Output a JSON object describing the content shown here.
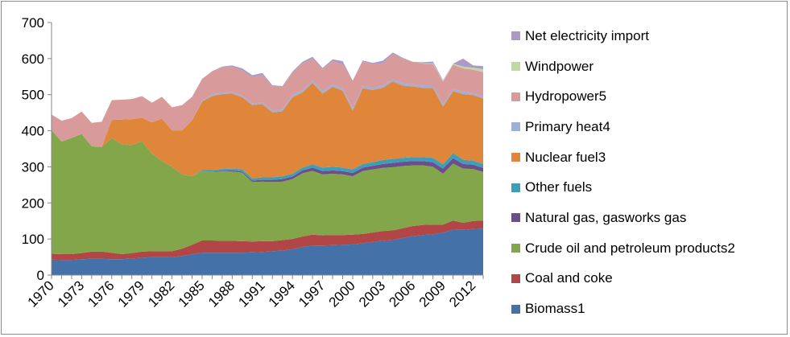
{
  "chart_data": {
    "type": "area",
    "stacked": true,
    "x": [
      1970,
      1971,
      1972,
      1973,
      1974,
      1975,
      1976,
      1977,
      1978,
      1979,
      1980,
      1981,
      1982,
      1983,
      1984,
      1985,
      1986,
      1987,
      1988,
      1989,
      1990,
      1991,
      1992,
      1993,
      1994,
      1995,
      1996,
      1997,
      1998,
      1999,
      2000,
      2001,
      2002,
      2003,
      2004,
      2005,
      2006,
      2007,
      2008,
      2009,
      2010,
      2011,
      2012,
      2013
    ],
    "x_tick_labels": [
      "1970",
      "1973",
      "1976",
      "1979",
      "1982",
      "1985",
      "1988",
      "1991",
      "1994",
      "1997",
      "2000",
      "2003",
      "2006",
      "2009",
      "2012"
    ],
    "y_tick_labels": [
      "0",
      "100",
      "200",
      "300",
      "400",
      "500",
      "600",
      "700"
    ],
    "ylim": [
      0,
      700
    ],
    "y_ticks": [
      0,
      100,
      200,
      300,
      400,
      500,
      600,
      700
    ],
    "grid": false,
    "legend_position": "right",
    "series": [
      {
        "name": "Biomass1",
        "color": "#4472A8",
        "values": [
          43,
          42,
          42,
          44,
          45,
          45,
          44,
          44,
          46,
          48,
          50,
          50,
          50,
          53,
          58,
          62,
          62,
          62,
          62,
          62,
          63,
          64,
          66,
          68,
          72,
          78,
          82,
          82,
          83,
          84,
          85,
          88,
          92,
          95,
          97,
          103,
          108,
          111,
          113,
          118,
          126,
          125,
          128,
          129
        ]
      },
      {
        "name": "Coal and coke",
        "color": "#B24545",
        "values": [
          16,
          16,
          16,
          17,
          20,
          20,
          18,
          14,
          15,
          17,
          16,
          16,
          16,
          20,
          26,
          34,
          34,
          33,
          33,
          32,
          30,
          30,
          28,
          29,
          28,
          29,
          30,
          28,
          28,
          27,
          27,
          26,
          26,
          27,
          27,
          27,
          28,
          28,
          27,
          22,
          25,
          20,
          22,
          22
        ]
      },
      {
        "name": "Crude oil and petroleum products2",
        "color": "#84A64A",
        "values": [
          343,
          312,
          322,
          330,
          292,
          290,
          318,
          305,
          299,
          306,
          271,
          250,
          235,
          206,
          190,
          192,
          190,
          192,
          192,
          190,
          165,
          165,
          164,
          162,
          166,
          175,
          177,
          169,
          170,
          168,
          162,
          174,
          175,
          175,
          175,
          172,
          168,
          165,
          160,
          141,
          158,
          150,
          144,
          135
        ]
      },
      {
        "name": "Natural gas, gasworks gas",
        "color": "#6A4F8C",
        "values": [
          0,
          0,
          0,
          0,
          0,
          0,
          0,
          0,
          0,
          0,
          0,
          0,
          0,
          0,
          0,
          0,
          1,
          2,
          3,
          3,
          4,
          5,
          6,
          7,
          7,
          8,
          9,
          9,
          9,
          9,
          9,
          10,
          10,
          11,
          12,
          12,
          12,
          12,
          13,
          14,
          15,
          13,
          12,
          11
        ]
      },
      {
        "name": "Other fuels",
        "color": "#3F9DB8",
        "values": [
          0,
          0,
          0,
          0,
          0,
          0,
          0,
          0,
          0,
          0,
          0,
          0,
          0,
          0,
          0,
          3,
          4,
          5,
          5,
          6,
          6,
          7,
          7,
          8,
          8,
          8,
          9,
          10,
          10,
          10,
          10,
          10,
          10,
          11,
          11,
          11,
          11,
          11,
          12,
          12,
          14,
          12,
          11,
          11
        ]
      },
      {
        "name": "Nuclear fuel3",
        "color": "#E0863A",
        "values": [
          0,
          0,
          0,
          0,
          0,
          0,
          50,
          68,
          72,
          65,
          86,
          118,
          100,
          122,
          155,
          190,
          205,
          208,
          208,
          200,
          203,
          203,
          180,
          180,
          212,
          208,
          226,
          205,
          222,
          213,
          163,
          210,
          200,
          200,
          215,
          200,
          196,
          192,
          194,
          160,
          172,
          182,
          182,
          182
        ]
      },
      {
        "name": "Primary heat4",
        "color": "#9DB0D8",
        "values": [
          0,
          0,
          0,
          0,
          0,
          0,
          0,
          0,
          0,
          0,
          0,
          0,
          0,
          0,
          0,
          3,
          4,
          4,
          4,
          4,
          4,
          5,
          5,
          5,
          6,
          6,
          6,
          6,
          6,
          6,
          6,
          6,
          6,
          6,
          6,
          6,
          6,
          6,
          6,
          6,
          6,
          6,
          6,
          6
        ]
      },
      {
        "name": "Hydropower5",
        "color": "#D89A9A",
        "values": [
          43,
          58,
          55,
          62,
          65,
          70,
          55,
          55,
          56,
          60,
          55,
          60,
          64,
          70,
          65,
          60,
          65,
          70,
          70,
          70,
          73,
          75,
          67,
          63,
          62,
          75,
          60,
          62,
          65,
          67,
          77,
          68,
          65,
          62,
          70,
          68,
          62,
          61,
          60,
          63,
          67,
          65,
          64,
          67
        ]
      },
      {
        "name": "Windpower",
        "color": "#BFD9A3",
        "values": [
          0,
          0,
          0,
          0,
          0,
          0,
          0,
          0,
          0,
          0,
          0,
          0,
          0,
          0,
          0,
          0,
          0,
          0,
          0,
          0,
          0,
          0,
          0,
          0,
          0,
          0,
          0,
          0,
          0,
          0,
          0,
          0,
          0,
          0,
          0,
          0,
          0,
          1,
          2,
          2,
          3,
          5,
          6,
          8
        ]
      },
      {
        "name": "Net electricity import",
        "color": "#A99BC6",
        "values": [
          0,
          0,
          0,
          0,
          0,
          0,
          0,
          0,
          0,
          0,
          0,
          0,
          0,
          0,
          0,
          0,
          0,
          2,
          4,
          6,
          6,
          6,
          3,
          2,
          3,
          4,
          6,
          3,
          5,
          9,
          0,
          3,
          4,
          7,
          4,
          3,
          0,
          3,
          5,
          2,
          0,
          22,
          6,
          8
        ]
      }
    ]
  }
}
